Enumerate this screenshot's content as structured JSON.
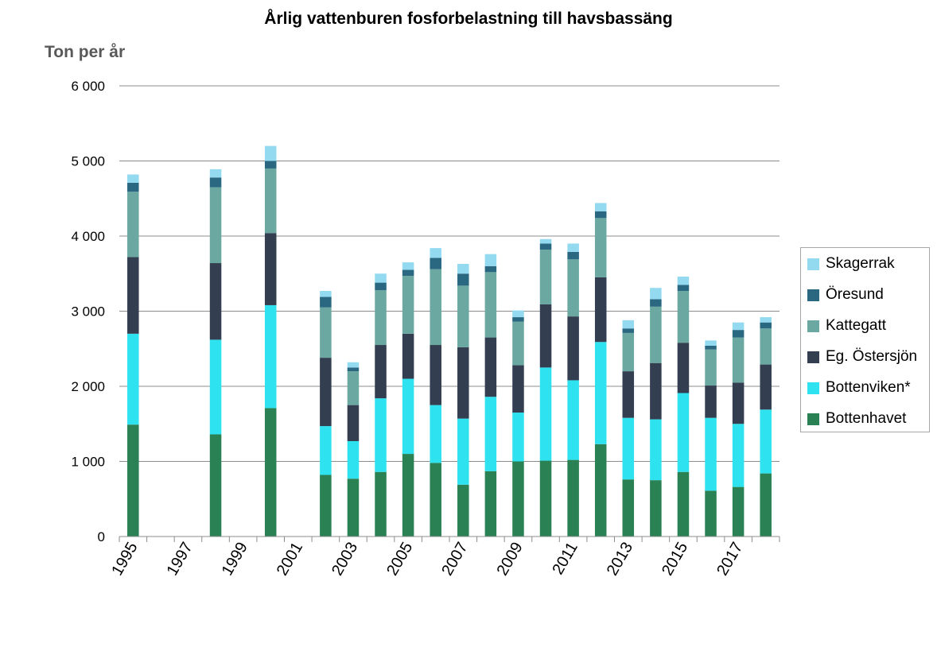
{
  "chart_data": {
    "type": "bar",
    "stacked": true,
    "title": "Årlig vattenburen fosforbelastning till havsbassäng",
    "ylabel": "Ton per år",
    "xlabel": "",
    "ylim": [
      0,
      6000
    ],
    "yticks": [
      0,
      1000,
      2000,
      3000,
      4000,
      5000,
      6000
    ],
    "ytick_labels": [
      "0",
      "1 000",
      "2 000",
      "3 000",
      "4 000",
      "5 000",
      "6 000"
    ],
    "grid": "horizontal",
    "legend_position": "right",
    "x_start": 1995,
    "x_end": 2018,
    "xtick_labels": [
      "1995",
      "1997",
      "1999",
      "2001",
      "2003",
      "2005",
      "2007",
      "2009",
      "2011",
      "2013",
      "2015",
      "2017"
    ],
    "years": [
      1995,
      1998,
      2000,
      2002,
      2003,
      2004,
      2005,
      2006,
      2007,
      2008,
      2009,
      2010,
      2011,
      2012,
      2013,
      2014,
      2015,
      2016,
      2017,
      2018
    ],
    "series": [
      {
        "name": "Bottenhavet",
        "color": "#2a8154",
        "values": [
          1490,
          1360,
          1710,
          820,
          770,
          860,
          1100,
          980,
          690,
          870,
          1000,
          1010,
          1020,
          1230,
          760,
          750,
          860,
          610,
          660,
          840
        ]
      },
      {
        "name": "Bottenviken*",
        "color": "#2ee2f0",
        "values": [
          1210,
          1260,
          1370,
          650,
          500,
          980,
          1000,
          770,
          880,
          990,
          650,
          1240,
          1060,
          1360,
          820,
          810,
          1050,
          970,
          840,
          850
        ]
      },
      {
        "name": "Eg. Östersjön",
        "color": "#333f50",
        "values": [
          1020,
          1020,
          960,
          910,
          480,
          710,
          600,
          800,
          950,
          790,
          630,
          840,
          850,
          860,
          620,
          750,
          670,
          430,
          550,
          600
        ]
      },
      {
        "name": "Kattegatt",
        "color": "#6aa8a1",
        "values": [
          870,
          1010,
          860,
          670,
          450,
          730,
          770,
          1010,
          820,
          870,
          580,
          730,
          760,
          790,
          510,
          750,
          690,
          480,
          600,
          480
        ]
      },
      {
        "name": "Öresund",
        "color": "#2a6781",
        "values": [
          120,
          130,
          100,
          140,
          50,
          100,
          80,
          150,
          160,
          80,
          60,
          80,
          100,
          90,
          60,
          100,
          80,
          50,
          100,
          80
        ]
      },
      {
        "name": "Skagerrak",
        "color": "#93daf0",
        "values": [
          110,
          110,
          200,
          80,
          70,
          120,
          100,
          130,
          130,
          160,
          90,
          60,
          110,
          110,
          110,
          150,
          110,
          70,
          100,
          70
        ]
      }
    ],
    "legend_order": [
      "Skagerrak",
      "Öresund",
      "Kattegatt",
      "Eg. Östersjön",
      "Bottenviken*",
      "Bottenhavet"
    ]
  }
}
